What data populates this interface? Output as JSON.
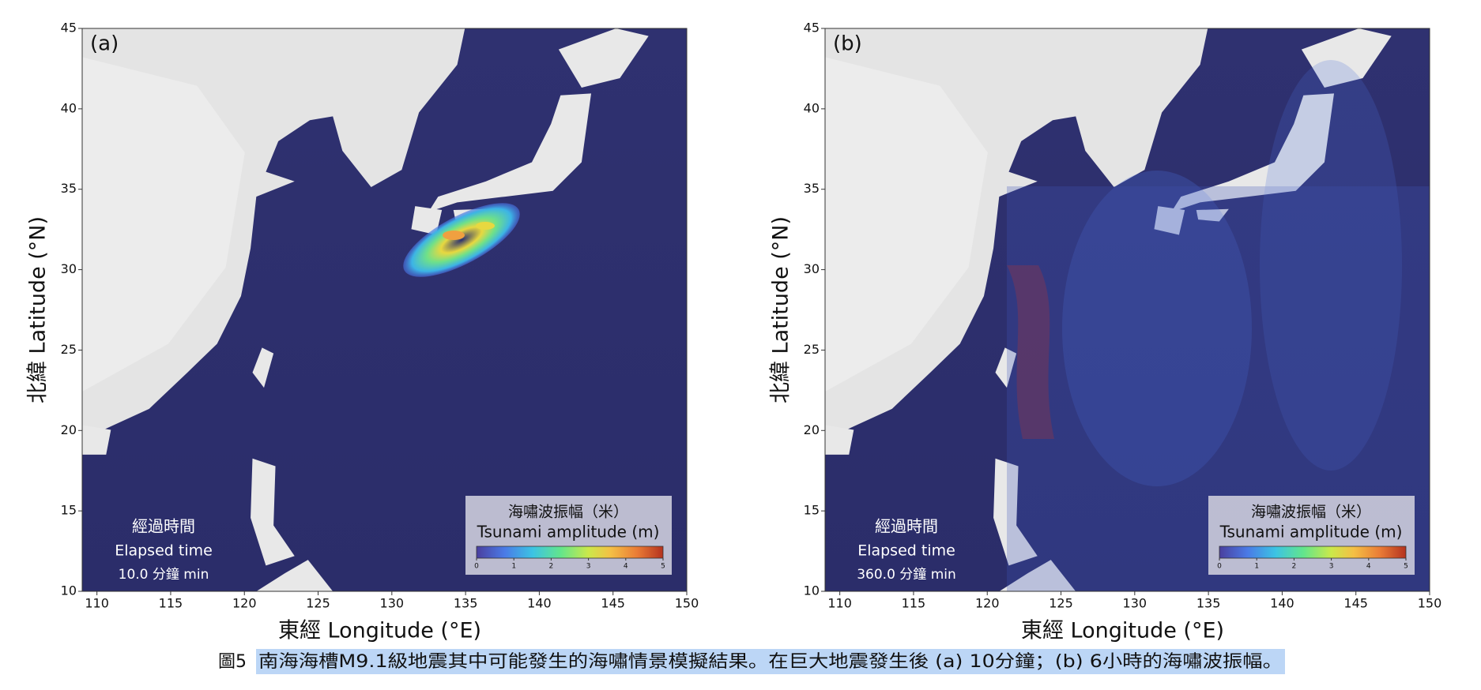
{
  "figure": {
    "panels": [
      {
        "label": "(a)",
        "xlabel": "東經 Longitude (°E)",
        "ylabel": "北緯 Latitude (°N)",
        "xlim": [
          109,
          150
        ],
        "ylim": [
          10,
          45
        ],
        "xticks": [
          110,
          115,
          120,
          125,
          130,
          135,
          140,
          145,
          150
        ],
        "yticks": [
          10,
          15,
          20,
          25,
          30,
          35,
          40,
          45
        ],
        "elapsed_title": "經過時間",
        "elapsed_label": "Elapsed time",
        "elapsed_value": "10.0 分鐘 min",
        "legend_title": "海嘯波振幅（米）",
        "legend_subtitle": "Tsunami amplitude (m)",
        "colorbar_lim": [
          0,
          5
        ],
        "colorbar_ticks": [
          0,
          1,
          2,
          3,
          4,
          5
        ]
      },
      {
        "label": "(b)",
        "xlabel": "東經 Longitude (°E)",
        "ylabel": "北緯 Latitude (°N)",
        "xlim": [
          109,
          150
        ],
        "ylim": [
          10,
          45
        ],
        "xticks": [
          110,
          115,
          120,
          125,
          130,
          135,
          140,
          145,
          150
        ],
        "yticks": [
          10,
          15,
          20,
          25,
          30,
          35,
          40,
          45
        ],
        "elapsed_title": "經過時間",
        "elapsed_label": "Elapsed time",
        "elapsed_value": "360.0 分鐘 min",
        "legend_title": "海嘯波振幅（米）",
        "legend_subtitle": "Tsunami amplitude (m)",
        "colorbar_lim": [
          0,
          5
        ],
        "colorbar_ticks": [
          0,
          1,
          2,
          3,
          4,
          5
        ]
      }
    ],
    "caption": {
      "number": "圖5",
      "text": "南海海槽M9.1級地震其中可能發生的海嘯情景模擬結果。在巨大地震發生後 (a) 10分鐘；(b) 6小時的海嘯波振幅。"
    }
  }
}
